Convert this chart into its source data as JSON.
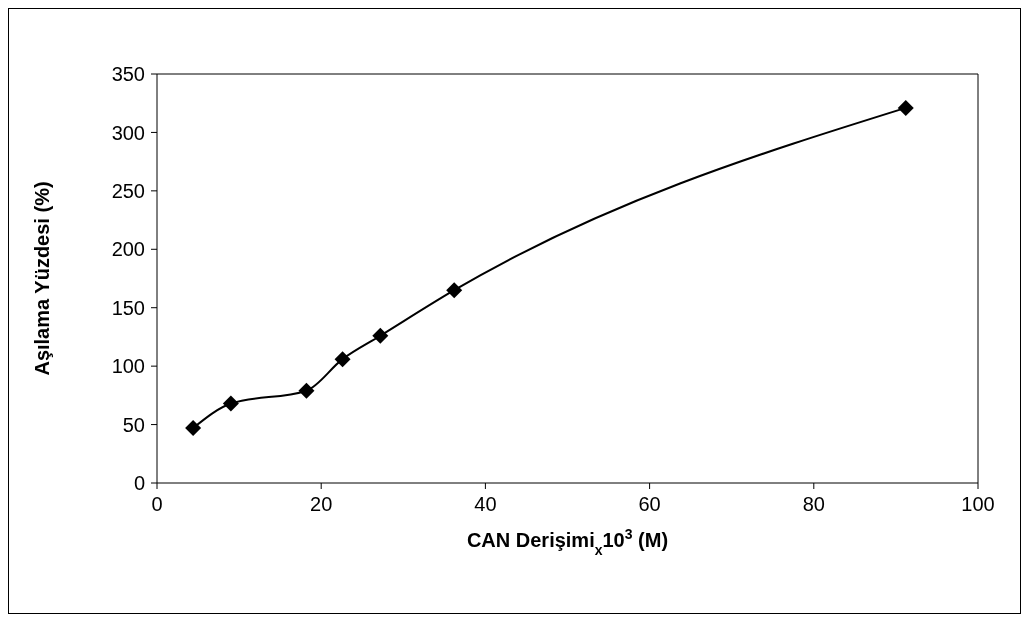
{
  "chart_data": {
    "type": "line",
    "xlabel": "CAN Derişimi$_{x}$10$^{3}$ (M)",
    "ylabel": "Aşılama Yüzdesi (%)",
    "x": [
      4.4,
      9.0,
      18.2,
      22.6,
      27.2,
      36.2,
      91.2
    ],
    "series": [
      {
        "color": "#000000",
        "values": [
          47,
          68,
          79,
          106,
          126,
          165,
          321
        ]
      }
    ],
    "xlim": [
      0,
      100
    ],
    "xticks": [
      0,
      20,
      40,
      60,
      80,
      100
    ],
    "ylim": [
      0,
      350
    ],
    "yticks": [
      0,
      50,
      100,
      150,
      200,
      250,
      300,
      350
    ],
    "marker": "diamond",
    "line_style": "solid",
    "grid": false
  }
}
